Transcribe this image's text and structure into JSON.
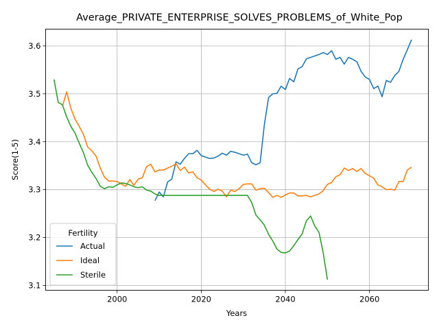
{
  "chart_data": {
    "type": "line",
    "title": "Average_PRIVATE_ENTERPRISE_SOLVES_PROBLEMS_of_White_Pop",
    "xlabel": "Years",
    "ylabel": "Score(1-5)",
    "xlim": [
      1983,
      2074
    ],
    "ylim": [
      3.09,
      3.635
    ],
    "xticks": [
      2000,
      2020,
      2040,
      2060
    ],
    "yticks": [
      3.1,
      3.2,
      3.3,
      3.4,
      3.5,
      3.6
    ],
    "grid": true,
    "legend": {
      "title": "Fertility",
      "position": "lower-left"
    },
    "series": [
      {
        "name": "Actual",
        "color": "#1f77b4",
        "x": [
          2009,
          2010,
          2011,
          2012,
          2013,
          2014,
          2015,
          2016,
          2017,
          2018,
          2019,
          2020,
          2021,
          2022,
          2023,
          2024,
          2025,
          2026,
          2027,
          2028,
          2029,
          2030,
          2031,
          2032,
          2033,
          2034,
          2035,
          2036,
          2037,
          2038,
          2039,
          2040,
          2041,
          2042,
          2043,
          2044,
          2045,
          2046,
          2047,
          2048,
          2049,
          2050,
          2051,
          2052,
          2053,
          2054,
          2055,
          2056,
          2057,
          2058,
          2059,
          2060,
          2061,
          2062,
          2063,
          2064,
          2065,
          2066,
          2067,
          2068,
          2069,
          2070
        ],
        "values": [
          3.277,
          3.295,
          3.285,
          3.316,
          3.322,
          3.358,
          3.353,
          3.365,
          3.375,
          3.375,
          3.382,
          3.371,
          3.368,
          3.365,
          3.366,
          3.37,
          3.376,
          3.372,
          3.38,
          3.378,
          3.375,
          3.372,
          3.374,
          3.356,
          3.352,
          3.356,
          3.435,
          3.492,
          3.5,
          3.501,
          3.516,
          3.509,
          3.532,
          3.525,
          3.552,
          3.557,
          3.573,
          3.576,
          3.579,
          3.582,
          3.586,
          3.582,
          3.59,
          3.572,
          3.576,
          3.562,
          3.576,
          3.572,
          3.567,
          3.547,
          3.535,
          3.53,
          3.511,
          3.516,
          3.494,
          3.528,
          3.524,
          3.538,
          3.547,
          3.572,
          3.592,
          3.613
        ]
      },
      {
        "name": "Ideal",
        "color": "#ff7f0e",
        "x": [
          1987,
          1988,
          1989,
          1990,
          1991,
          1992,
          1993,
          1994,
          1995,
          1996,
          1997,
          1998,
          1999,
          2000,
          2001,
          2002,
          2003,
          2004,
          2005,
          2006,
          2007,
          2008,
          2009,
          2010,
          2011,
          2012,
          2013,
          2014,
          2015,
          2016,
          2017,
          2018,
          2019,
          2020,
          2021,
          2022,
          2023,
          2024,
          2025,
          2026,
          2027,
          2028,
          2029,
          2030,
          2031,
          2032,
          2033,
          2034,
          2035,
          2036,
          2037,
          2038,
          2039,
          2040,
          2041,
          2042,
          2043,
          2044,
          2045,
          2046,
          2047,
          2048,
          2049,
          2050,
          2051,
          2052,
          2053,
          2054,
          2055,
          2056,
          2057,
          2058,
          2059,
          2060,
          2061,
          2062,
          2063,
          2064,
          2065,
          2066,
          2067,
          2068,
          2069,
          2070
        ],
        "values": [
          3.474,
          3.504,
          3.47,
          3.447,
          3.432,
          3.415,
          3.389,
          3.381,
          3.37,
          3.345,
          3.326,
          3.318,
          3.318,
          3.317,
          3.312,
          3.307,
          3.321,
          3.309,
          3.322,
          3.325,
          3.348,
          3.353,
          3.337,
          3.341,
          3.341,
          3.345,
          3.349,
          3.354,
          3.34,
          3.347,
          3.335,
          3.337,
          3.325,
          3.32,
          3.31,
          3.301,
          3.296,
          3.301,
          3.297,
          3.285,
          3.299,
          3.296,
          3.302,
          3.311,
          3.312,
          3.312,
          3.299,
          3.302,
          3.303,
          3.294,
          3.284,
          3.288,
          3.284,
          3.289,
          3.293,
          3.293,
          3.287,
          3.287,
          3.288,
          3.285,
          3.288,
          3.291,
          3.298,
          3.311,
          3.315,
          3.327,
          3.331,
          3.345,
          3.34,
          3.344,
          3.338,
          3.344,
          3.334,
          3.329,
          3.324,
          3.31,
          3.306,
          3.3,
          3.301,
          3.299,
          3.317,
          3.317,
          3.341,
          3.347
        ]
      },
      {
        "name": "Sterile",
        "color": "#2ca02c",
        "x": [
          1985,
          1986,
          1987,
          1988,
          1989,
          1990,
          1991,
          1992,
          1993,
          1994,
          1995,
          1996,
          1997,
          1998,
          1999,
          2000,
          2001,
          2002,
          2003,
          2004,
          2005,
          2006,
          2007,
          2008,
          2009,
          2010,
          2011,
          2012,
          2013,
          2014,
          2015,
          2016,
          2017,
          2018,
          2019,
          2020,
          2021,
          2022,
          2023,
          2024,
          2025,
          2026,
          2027,
          2028,
          2029,
          2030,
          2031,
          2032,
          2033,
          2034,
          2035,
          2036,
          2037,
          2038,
          2039,
          2040,
          2041,
          2042,
          2043,
          2044,
          2045,
          2046,
          2047,
          2048,
          2049,
          2050
        ],
        "values": [
          3.53,
          3.482,
          3.477,
          3.452,
          3.432,
          3.418,
          3.397,
          3.377,
          3.351,
          3.336,
          3.323,
          3.307,
          3.302,
          3.306,
          3.305,
          3.31,
          3.314,
          3.313,
          3.31,
          3.306,
          3.304,
          3.306,
          3.299,
          3.297,
          3.291,
          3.288,
          3.288,
          3.288,
          3.288,
          3.288,
          3.288,
          3.288,
          3.288,
          3.288,
          3.288,
          3.288,
          3.288,
          3.288,
          3.288,
          3.288,
          3.288,
          3.288,
          3.288,
          3.288,
          3.288,
          3.288,
          3.288,
          3.273,
          3.247,
          3.237,
          3.226,
          3.207,
          3.193,
          3.176,
          3.169,
          3.168,
          3.172,
          3.183,
          3.196,
          3.208,
          3.235,
          3.245,
          3.224,
          3.211,
          3.168,
          3.112
        ]
      }
    ]
  }
}
